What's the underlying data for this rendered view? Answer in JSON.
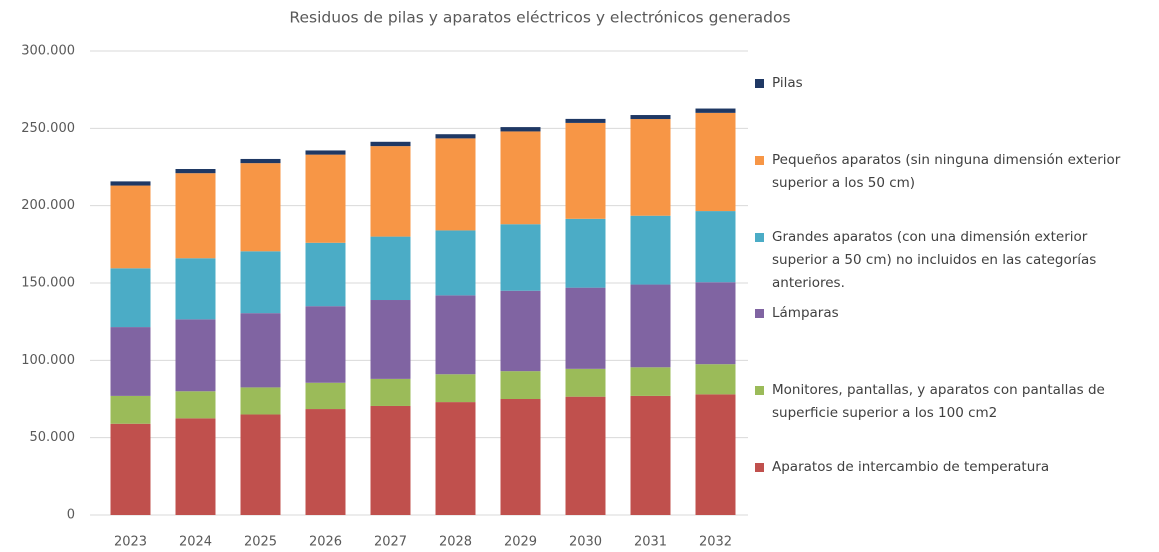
{
  "chart_data": {
    "type": "stacked_bar",
    "title": "Residuos de pilas y aparatos eléctricos y electrónicos generados",
    "categories": [
      "2023",
      "2024",
      "2025",
      "2026",
      "2027",
      "2028",
      "2029",
      "2030",
      "2031",
      "2032"
    ],
    "series": [
      {
        "name": "Aparatos de intercambio de temperatura",
        "color": "#c0504d",
        "values": [
          59000,
          62500,
          65000,
          68500,
          70500,
          73000,
          75000,
          76500,
          77000,
          78000
        ]
      },
      {
        "name": "Monitores, pantallas, y aparatos con pantallas de superficie superior a los 100 cm2",
        "color": "#9bbb59",
        "values": [
          18000,
          17500,
          17500,
          17000,
          17500,
          18000,
          18000,
          18000,
          18500,
          19500
        ]
      },
      {
        "name": "Lámparas",
        "color": "#8064a2",
        "values": [
          44500,
          46500,
          48000,
          49500,
          51000,
          51000,
          52000,
          52500,
          53500,
          53000
        ]
      },
      {
        "name": "Grandes aparatos (con una dimensión exterior superior a 50 cm) no incluidos en las categorías anteriores.",
        "color": "#4bacc6",
        "values": [
          38000,
          39500,
          40000,
          41000,
          41000,
          42000,
          43000,
          44500,
          44500,
          46000
        ]
      },
      {
        "name": "Pequeños aparatos (sin ninguna dimensión exterior superior a los 50 cm)",
        "color": "#f79646",
        "values": [
          53500,
          55000,
          57000,
          57000,
          58500,
          59500,
          60000,
          62000,
          62500,
          63500
        ]
      },
      {
        "name": "Pilas",
        "color": "#1f3864",
        "values": [
          2700,
          2700,
          2700,
          2700,
          2800,
          2700,
          2800,
          2600,
          2600,
          2800
        ]
      }
    ],
    "ylim": [
      0,
      300000
    ],
    "yticks": [
      0,
      {
        "value": 50000,
        "label": "50.000"
      },
      {
        "value": 100000,
        "label": "100.000"
      },
      {
        "value": 150000,
        "label": "150.000"
      },
      {
        "value": 200000,
        "label": "200.000"
      },
      {
        "value": 250000,
        "label": "250.000"
      },
      {
        "value": 300000,
        "label": "300.000"
      }
    ],
    "grid": true,
    "legend": "right"
  }
}
